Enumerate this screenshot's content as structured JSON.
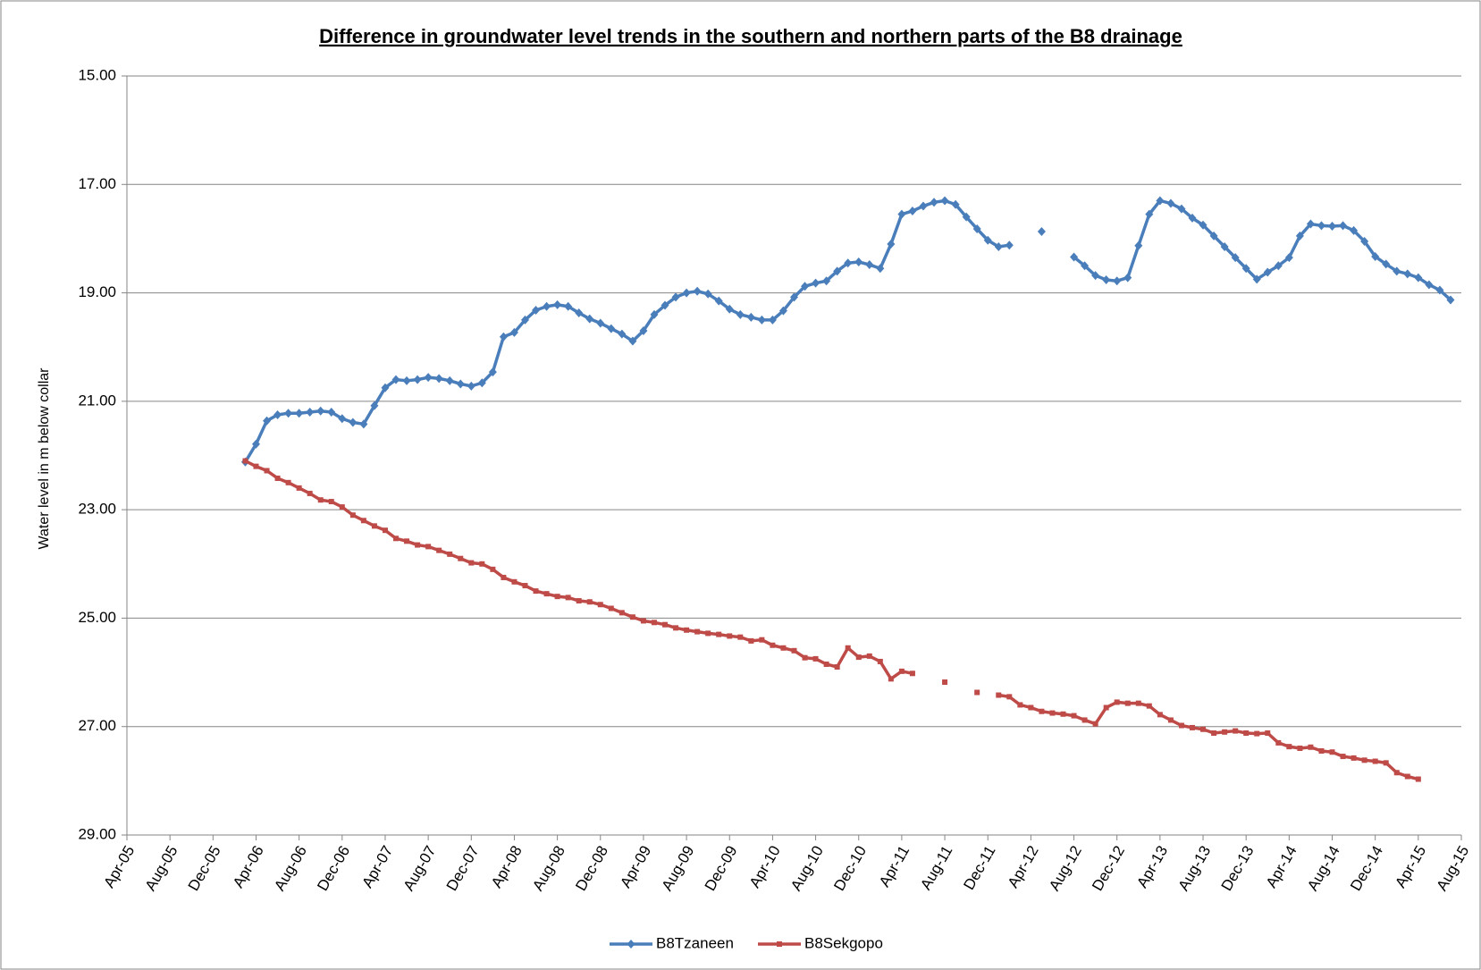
{
  "chart_data": {
    "type": "line",
    "title": "Difference in groundwater level trends in the southern and northern parts of the B8 drainage",
    "y_label": "Water level in m below collar",
    "categories": [
      "Apr-05",
      null,
      null,
      null,
      "Aug-05",
      null,
      null,
      null,
      "Dec-05",
      null,
      null,
      null,
      "Apr-06",
      null,
      null,
      null,
      "Aug-06",
      null,
      null,
      null,
      "Dec-06",
      null,
      null,
      null,
      "Apr-07",
      null,
      null,
      null,
      "Aug-07",
      null,
      null,
      null,
      "Dec-07",
      null,
      null,
      null,
      "Apr-08",
      null,
      null,
      null,
      "Aug-08",
      null,
      null,
      null,
      "Dec-08",
      null,
      null,
      null,
      "Apr-09",
      null,
      null,
      null,
      "Aug-09",
      null,
      null,
      null,
      "Dec-09",
      null,
      null,
      null,
      "Apr-10",
      null,
      null,
      null,
      "Aug-10",
      null,
      null,
      null,
      "Dec-10",
      null,
      null,
      null,
      "Apr-11",
      null,
      null,
      null,
      "Aug-11",
      null,
      null,
      null,
      "Dec-11",
      null,
      null,
      null,
      "Apr-12",
      null,
      null,
      null,
      "Aug-12",
      null,
      null,
      null,
      "Dec-12",
      null,
      null,
      null,
      "Apr-13",
      null,
      null,
      null,
      "Aug-13",
      null,
      null,
      null,
      "Dec-13",
      null,
      null,
      null,
      "Apr-14",
      null,
      null,
      null,
      "Aug-14",
      null,
      null,
      null,
      "Dec-14",
      null,
      null,
      null,
      "Apr-15",
      null,
      null,
      null,
      "Aug-15"
    ],
    "series": [
      {
        "name": "B8Tzaneen",
        "color": "#4a7ebb",
        "marker": "diamond",
        "values": [
          null,
          null,
          null,
          null,
          null,
          null,
          null,
          null,
          null,
          null,
          null,
          22.12,
          21.79,
          21.36,
          21.25,
          21.22,
          21.22,
          21.2,
          21.18,
          21.2,
          21.32,
          21.39,
          21.42,
          21.08,
          20.75,
          20.6,
          20.62,
          20.6,
          20.56,
          20.58,
          20.62,
          20.68,
          20.72,
          20.66,
          20.46,
          19.81,
          19.73,
          19.5,
          19.32,
          19.25,
          19.22,
          19.25,
          19.37,
          19.48,
          19.56,
          19.66,
          19.76,
          19.89,
          19.7,
          19.4,
          19.23,
          19.08,
          19.0,
          18.97,
          19.02,
          19.15,
          19.3,
          19.4,
          19.45,
          19.5,
          19.5,
          19.33,
          19.08,
          18.88,
          18.82,
          18.78,
          18.6,
          18.45,
          18.43,
          18.48,
          18.55,
          18.1,
          17.55,
          17.49,
          17.4,
          17.33,
          17.3,
          17.37,
          17.6,
          17.82,
          18.03,
          18.15,
          18.12,
          null,
          null,
          17.87,
          null,
          null,
          18.34,
          18.5,
          18.68,
          18.76,
          18.78,
          18.72,
          18.13,
          17.55,
          17.3,
          17.35,
          17.45,
          17.62,
          17.75,
          17.95,
          18.15,
          18.35,
          18.55,
          18.75,
          18.62,
          18.5,
          18.35,
          17.95,
          17.73,
          17.76,
          17.77,
          17.76,
          17.85,
          18.05,
          18.33,
          18.47,
          18.6,
          18.65,
          18.72,
          18.85,
          18.95,
          19.13,
          null
        ]
      },
      {
        "name": "B8Sekgopo",
        "color": "#be4b48",
        "marker": "square",
        "values": [
          null,
          null,
          null,
          null,
          null,
          null,
          null,
          null,
          null,
          null,
          null,
          22.1,
          22.2,
          22.28,
          22.42,
          22.5,
          22.6,
          22.7,
          22.82,
          22.85,
          22.95,
          23.1,
          23.2,
          23.3,
          23.38,
          23.53,
          23.58,
          23.65,
          23.68,
          23.75,
          23.82,
          23.9,
          23.98,
          24.0,
          24.1,
          24.25,
          24.33,
          24.4,
          24.5,
          24.55,
          24.6,
          24.62,
          24.68,
          24.7,
          24.75,
          24.82,
          24.9,
          24.98,
          25.05,
          25.08,
          25.12,
          25.18,
          25.22,
          25.25,
          25.28,
          25.3,
          25.33,
          25.35,
          25.42,
          25.4,
          25.5,
          25.55,
          25.6,
          25.73,
          25.75,
          25.85,
          25.9,
          25.55,
          25.72,
          25.7,
          25.8,
          26.12,
          25.98,
          26.02,
          null,
          null,
          26.18,
          null,
          null,
          26.37,
          null,
          26.42,
          26.45,
          26.6,
          26.65,
          26.72,
          26.75,
          26.77,
          26.8,
          26.88,
          26.95,
          26.65,
          26.55,
          26.57,
          26.57,
          26.62,
          26.78,
          26.88,
          26.98,
          27.02,
          27.05,
          27.12,
          27.1,
          27.08,
          27.12,
          27.13,
          27.12,
          27.3,
          27.37,
          27.4,
          27.38,
          27.45,
          27.47,
          27.55,
          27.58,
          27.62,
          27.64,
          27.67,
          27.85,
          27.92,
          27.97,
          null,
          null,
          null,
          null
        ]
      }
    ],
    "ylim": [
      15,
      29
    ],
    "y_inverted": true,
    "yticks": [
      {
        "value": 15,
        "label": "15.00"
      },
      {
        "value": 17,
        "label": "17.00"
      },
      {
        "value": 19,
        "label": "19.00"
      },
      {
        "value": 21,
        "label": "21.00"
      },
      {
        "value": 23,
        "label": "23.00"
      },
      {
        "value": 25,
        "label": "25.00"
      },
      {
        "value": 27,
        "label": "27.00"
      },
      {
        "value": 29,
        "label": "29.00"
      }
    ],
    "grid": true,
    "legend": "bottom"
  }
}
